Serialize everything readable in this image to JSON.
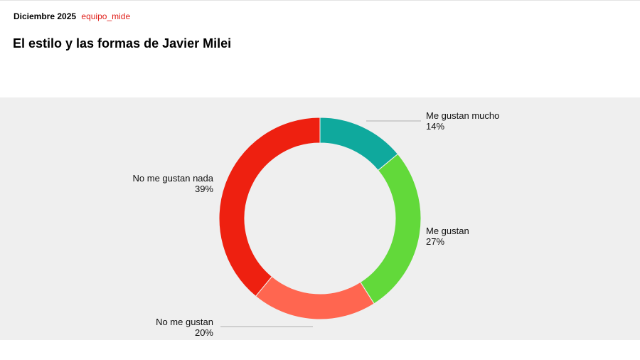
{
  "header": {
    "date": "Diciembre 2025",
    "author": "equipo_mide",
    "title": "El estilo y las formas de Javier Milei"
  },
  "chart_data": {
    "type": "pie",
    "variant": "donut",
    "title": "El estilo y las formas de Javier Milei",
    "categories": [
      "Me gustan mucho",
      "Me gustan",
      "No me gustan",
      "No me gustan nada"
    ],
    "values": [
      14,
      27,
      20,
      39
    ],
    "value_labels": [
      "14%",
      "27%",
      "20%",
      "39%"
    ],
    "colors": [
      "#0fa99d",
      "#62d93a",
      "#ff6650",
      "#ee2010"
    ],
    "label_placement": "outside with leader lines",
    "legend": "none"
  }
}
